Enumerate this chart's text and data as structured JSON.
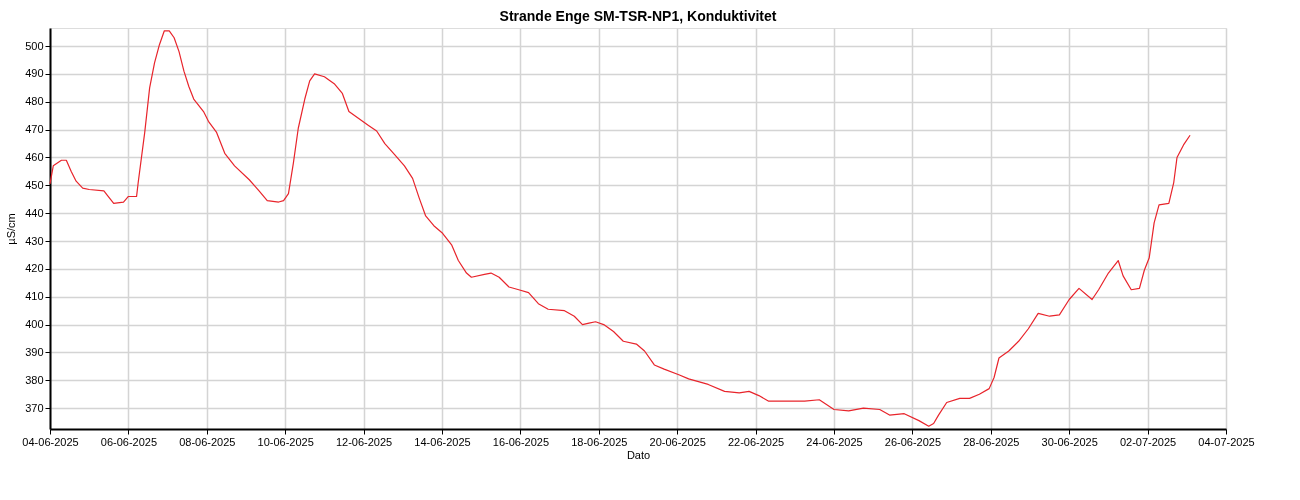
{
  "chart_data": {
    "type": "line",
    "title": "Strande Enge SM-TSR-NP1, Konduktivitet",
    "xlabel": "Dato",
    "ylabel": "µS/cm",
    "x": [
      "2025-06-04T00:00",
      "2025-06-04T02:00",
      "2025-06-04T07:00",
      "2025-06-04T10:00",
      "2025-06-04T13:00",
      "2025-06-04T16:00",
      "2025-06-04T20:00",
      "2025-06-05T00:00",
      "2025-06-05T09:00",
      "2025-06-05T11:00",
      "2025-06-05T15:00",
      "2025-06-05T21:00",
      "2025-06-06T00:00",
      "2025-06-06T05:00",
      "2025-06-06T06:00",
      "2025-06-06T10:00",
      "2025-06-06T13:00",
      "2025-06-06T16:00",
      "2025-06-06T19:00",
      "2025-06-06T22:00",
      "2025-06-07T01:00",
      "2025-06-07T04:00",
      "2025-06-07T07:00",
      "2025-06-07T10:00",
      "2025-06-07T13:00",
      "2025-06-07T16:00",
      "2025-06-07T22:00",
      "2025-06-08T01:00",
      "2025-06-08T06:00",
      "2025-06-08T11:00",
      "2025-06-08T17:00",
      "2025-06-09T02:00",
      "2025-06-09T08:00",
      "2025-06-09T13:00",
      "2025-06-09T20:00",
      "2025-06-09T23:00",
      "2025-06-10T02:00",
      "2025-06-10T05:00",
      "2025-06-10T08:00",
      "2025-06-10T12:00",
      "2025-06-10T15:00",
      "2025-06-10T18:00",
      "2025-06-11T00:00",
      "2025-06-11T06:00",
      "2025-06-11T11:00",
      "2025-06-11T15:00",
      "2025-06-11T21:00",
      "2025-06-12T03:00",
      "2025-06-12T08:00",
      "2025-06-12T13:00",
      "2025-06-12T19:00",
      "2025-06-13T01:00",
      "2025-06-13T06:00",
      "2025-06-13T10:00",
      "2025-06-13T14:00",
      "2025-06-13T19:00",
      "2025-06-14T00:00",
      "2025-06-14T06:00",
      "2025-06-14T10:00",
      "2025-06-14T15:00",
      "2025-06-14T18:00",
      "2025-06-15T02:00",
      "2025-06-15T06:00",
      "2025-06-15T11:00",
      "2025-06-15T17:00",
      "2025-06-15T23:00",
      "2025-06-16T05:00",
      "2025-06-16T11:00",
      "2025-06-16T17:00",
      "2025-06-17T03:00",
      "2025-06-17T09:00",
      "2025-06-17T14:00",
      "2025-06-17T18:00",
      "2025-06-17T22:00",
      "2025-06-18T03:00",
      "2025-06-18T09:00",
      "2025-06-18T15:00",
      "2025-06-18T23:00",
      "2025-06-19T04:00",
      "2025-06-19T10:00",
      "2025-06-19T16:00",
      "2025-06-20T01:00",
      "2025-06-20T07:00",
      "2025-06-20T13:00",
      "2025-06-20T19:00",
      "2025-06-21T05:00",
      "2025-06-21T14:00",
      "2025-06-21T20:00",
      "2025-06-22T02:00",
      "2025-06-22T08:00",
      "2025-06-22T17:00",
      "2025-06-23T06:00",
      "2025-06-23T15:00",
      "2025-06-24T00:00",
      "2025-06-24T09:00",
      "2025-06-24T18:00",
      "2025-06-25T04:00",
      "2025-06-25T10:00",
      "2025-06-25T19:00",
      "2025-06-26T04:00",
      "2025-06-26T10:00",
      "2025-06-26T13:00",
      "2025-06-26T16:00",
      "2025-06-26T21:00",
      "2025-06-27T05:00",
      "2025-06-27T11:00",
      "2025-06-27T17:00",
      "2025-06-27T23:00",
      "2025-06-28T02:00",
      "2025-06-28T05:00",
      "2025-06-28T11:00",
      "2025-06-28T17:00",
      "2025-06-28T23:00",
      "2025-06-29T05:00",
      "2025-06-29T12:00",
      "2025-06-29T18:00",
      "2025-06-30T00:00",
      "2025-06-30T06:00",
      "2025-06-30T14:00",
      "2025-06-30T18:00",
      "2025-07-01T00:00",
      "2025-07-01T06:00",
      "2025-07-01T09:00",
      "2025-07-01T14:00",
      "2025-07-01T19:00",
      "2025-07-01T22:00",
      "2025-07-02T01:00",
      "2025-07-02T04:00",
      "2025-07-02T07:00",
      "2025-07-02T13:00",
      "2025-07-02T16:00",
      "2025-07-02T18:00",
      "2025-07-02T22:00",
      "2025-07-03T02:00"
    ],
    "series": [
      {
        "color": "#e8242b",
        "values": [
          450.5,
          457,
          459,
          459,
          455,
          451.5,
          449,
          448.5,
          448,
          446.5,
          443.5,
          444,
          446,
          446,
          451,
          469,
          485,
          494,
          500.5,
          505.5,
          505.5,
          503,
          498,
          491,
          485.5,
          481,
          476.5,
          473,
          469,
          461.5,
          457,
          452,
          448,
          444.5,
          444,
          444.5,
          447,
          458,
          470.5,
          481,
          487.5,
          490,
          489,
          486.5,
          483,
          476.5,
          474,
          471.5,
          469.5,
          465,
          461,
          457,
          452.5,
          445.5,
          439,
          435.5,
          433,
          428.5,
          423,
          418.5,
          417,
          418,
          418.5,
          417,
          413.5,
          412.5,
          411.5,
          407.5,
          405.5,
          405,
          403,
          400,
          400.5,
          401,
          400,
          397.5,
          394,
          393,
          390.5,
          385.5,
          384,
          382,
          380.5,
          379.5,
          378.5,
          376,
          375.5,
          376,
          374.5,
          372.5,
          372.5,
          372.5,
          373,
          369.5,
          369,
          370,
          369.5,
          367.5,
          368,
          365.5,
          363.5,
          364.5,
          367.5,
          372,
          373.5,
          373.5,
          375,
          377,
          381,
          388,
          390.5,
          394,
          398.5,
          404,
          403,
          403.5,
          409,
          413,
          409,
          412.5,
          418.5,
          423,
          417.5,
          412.5,
          413,
          419.5,
          424,
          436.5,
          443,
          443.5,
          451,
          460,
          464.5,
          468
        ]
      }
    ],
    "xlim": [
      "2025-06-04",
      "2025-07-04"
    ],
    "xticks": [
      {
        "value": "2025-06-04",
        "label": "04-06-2025"
      },
      {
        "value": "2025-06-06",
        "label": "06-06-2025"
      },
      {
        "value": "2025-06-08",
        "label": "08-06-2025"
      },
      {
        "value": "2025-06-10",
        "label": "10-06-2025"
      },
      {
        "value": "2025-06-12",
        "label": "12-06-2025"
      },
      {
        "value": "2025-06-14",
        "label": "14-06-2025"
      },
      {
        "value": "2025-06-16",
        "label": "16-06-2025"
      },
      {
        "value": "2025-06-18",
        "label": "18-06-2025"
      },
      {
        "value": "2025-06-20",
        "label": "20-06-2025"
      },
      {
        "value": "2025-06-22",
        "label": "22-06-2025"
      },
      {
        "value": "2025-06-24",
        "label": "24-06-2025"
      },
      {
        "value": "2025-06-26",
        "label": "26-06-2025"
      },
      {
        "value": "2025-06-28",
        "label": "28-06-2025"
      },
      {
        "value": "2025-06-30",
        "label": "30-06-2025"
      },
      {
        "value": "2025-07-02",
        "label": "02-07-2025"
      },
      {
        "value": "2025-07-04",
        "label": "04-07-2025"
      }
    ],
    "ylim": [
      362.5,
      506.5
    ],
    "yticks": [
      370,
      380,
      390,
      400,
      410,
      420,
      430,
      440,
      450,
      460,
      470,
      480,
      490,
      500
    ],
    "grid": true,
    "legend": false,
    "marker": "none",
    "line_style": "solid"
  }
}
